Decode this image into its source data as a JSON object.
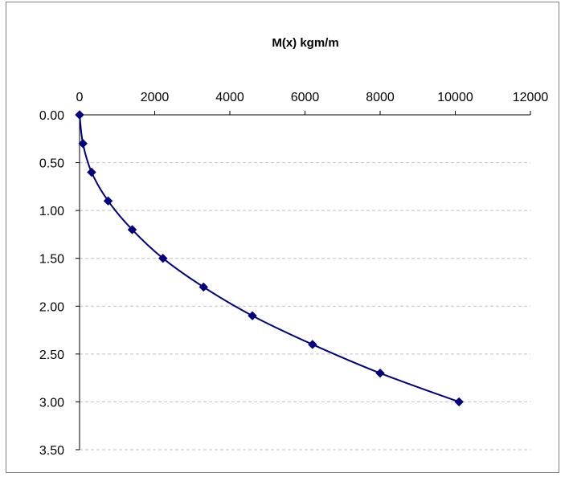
{
  "chart_data": {
    "type": "line",
    "title": "M(x) kgm/m",
    "xlabel": "",
    "ylabel": "",
    "x_axis_position": "top",
    "y_axis_reversed": true,
    "xlim": [
      0,
      12000
    ],
    "ylim": [
      0,
      3.5
    ],
    "x_ticks": [
      "0",
      "2000",
      "4000",
      "6000",
      "8000",
      "10000",
      "12000"
    ],
    "y_ticks": [
      "0.00",
      "0.50",
      "1.00",
      "1.50",
      "2.00",
      "2.50",
      "3.00",
      "3.50"
    ],
    "grid": "horizontal-dashed",
    "legend": "none",
    "series": [
      {
        "color": "#000080",
        "marker": "diamond",
        "points": [
          {
            "x": 0,
            "y": 0.0
          },
          {
            "x": 90,
            "y": 0.3
          },
          {
            "x": 320,
            "y": 0.6
          },
          {
            "x": 760,
            "y": 0.9
          },
          {
            "x": 1400,
            "y": 1.2
          },
          {
            "x": 2220,
            "y": 1.5
          },
          {
            "x": 3300,
            "y": 1.8
          },
          {
            "x": 4600,
            "y": 2.1
          },
          {
            "x": 6200,
            "y": 2.4
          },
          {
            "x": 8000,
            "y": 2.7
          },
          {
            "x": 10100,
            "y": 3.0
          }
        ]
      }
    ]
  }
}
